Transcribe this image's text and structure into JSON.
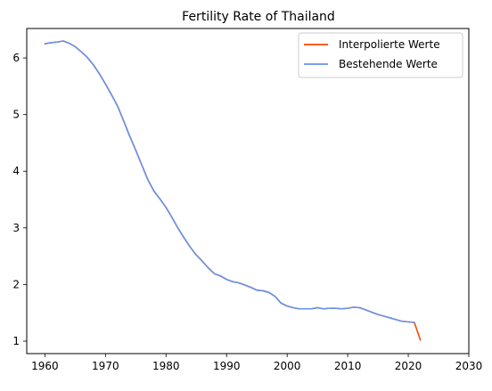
{
  "chart_data": {
    "type": "line",
    "title": "Fertility Rate of Thailand",
    "xlabel": "",
    "ylabel": "",
    "xlim": [
      1957,
      2030
    ],
    "ylim": [
      0.78,
      6.52
    ],
    "xticks": [
      1960,
      1970,
      1980,
      1990,
      2000,
      2010,
      2020,
      2030
    ],
    "yticks": [
      1,
      2,
      3,
      4,
      5,
      6
    ],
    "grid": false,
    "legend_position": "top-right",
    "series": [
      {
        "name": "Interpolierte Werte",
        "color": "#ff4500",
        "x": [
          1960,
          1961,
          1962,
          1963,
          1964,
          1965,
          1966,
          1967,
          1968,
          1969,
          1970,
          1971,
          1972,
          1973,
          1974,
          1975,
          1976,
          1977,
          1978,
          1979,
          1980,
          1981,
          1982,
          1983,
          1984,
          1985,
          1986,
          1987,
          1988,
          1989,
          1990,
          1991,
          1992,
          1993,
          1994,
          1995,
          1996,
          1997,
          1998,
          1999,
          2000,
          2001,
          2002,
          2003,
          2004,
          2005,
          2006,
          2007,
          2008,
          2009,
          2010,
          2011,
          2012,
          2013,
          2014,
          2015,
          2016,
          2017,
          2018,
          2019,
          2020,
          2021,
          2022
        ],
        "y": [
          6.25,
          6.27,
          6.28,
          6.3,
          6.26,
          6.2,
          6.11,
          6.01,
          5.88,
          5.72,
          5.54,
          5.35,
          5.15,
          4.89,
          4.62,
          4.37,
          4.11,
          3.85,
          3.65,
          3.51,
          3.36,
          3.18,
          2.99,
          2.82,
          2.66,
          2.52,
          2.41,
          2.29,
          2.19,
          2.15,
          2.09,
          2.05,
          2.03,
          1.99,
          1.95,
          1.9,
          1.89,
          1.86,
          1.79,
          1.67,
          1.62,
          1.59,
          1.57,
          1.57,
          1.57,
          1.59,
          1.57,
          1.58,
          1.58,
          1.57,
          1.58,
          1.6,
          1.59,
          1.55,
          1.51,
          1.47,
          1.44,
          1.41,
          1.38,
          1.35,
          1.34,
          1.33,
          1.02
        ]
      },
      {
        "name": "Bestehende Werte",
        "color": "#6495ed",
        "x": [
          1960,
          1961,
          1962,
          1963,
          1964,
          1965,
          1966,
          1967,
          1968,
          1969,
          1970,
          1971,
          1972,
          1973,
          1974,
          1975,
          1976,
          1977,
          1978,
          1979,
          1980,
          1981,
          1982,
          1983,
          1984,
          1985,
          1986,
          1987,
          1988,
          1989,
          1990,
          1991,
          1992,
          1993,
          1994,
          1995,
          1996,
          1997,
          1998,
          1999,
          2000,
          2001,
          2002,
          2003,
          2004,
          2005,
          2006,
          2007,
          2008,
          2009,
          2010,
          2011,
          2012,
          2013,
          2014,
          2015,
          2016,
          2017,
          2018,
          2019,
          2020,
          2021
        ],
        "y": [
          6.25,
          6.27,
          6.28,
          6.3,
          6.26,
          6.2,
          6.11,
          6.01,
          5.88,
          5.72,
          5.54,
          5.35,
          5.15,
          4.89,
          4.62,
          4.37,
          4.11,
          3.85,
          3.65,
          3.51,
          3.36,
          3.18,
          2.99,
          2.82,
          2.66,
          2.52,
          2.41,
          2.29,
          2.19,
          2.15,
          2.09,
          2.05,
          2.03,
          1.99,
          1.95,
          1.9,
          1.89,
          1.86,
          1.79,
          1.67,
          1.62,
          1.59,
          1.57,
          1.57,
          1.57,
          1.59,
          1.57,
          1.58,
          1.58,
          1.57,
          1.58,
          1.6,
          1.59,
          1.55,
          1.51,
          1.47,
          1.44,
          1.41,
          1.38,
          1.35,
          1.34,
          1.33
        ]
      }
    ]
  }
}
